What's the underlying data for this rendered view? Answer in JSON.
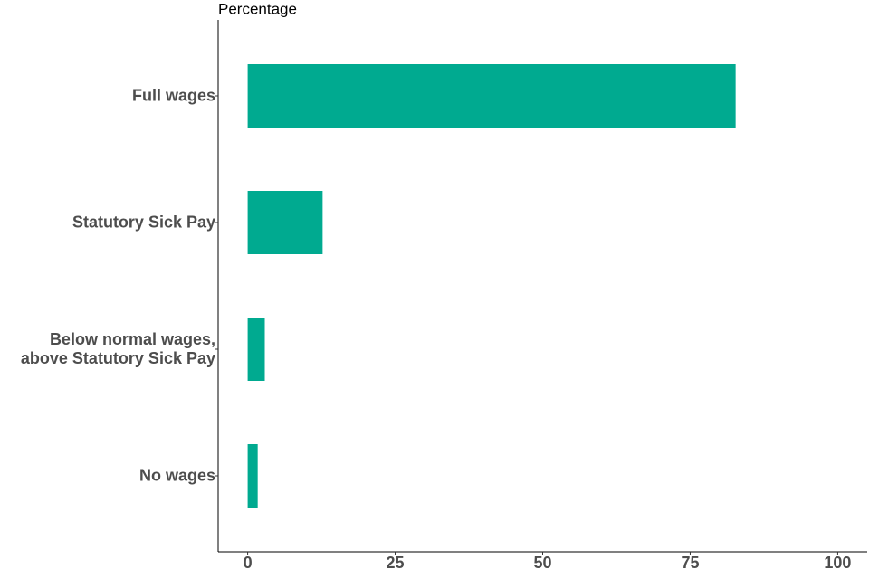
{
  "chart_data": {
    "type": "bar",
    "orientation": "horizontal",
    "title": "Percentage",
    "categories": [
      "Full wages",
      "Statutory Sick Pay",
      "Below normal wages,\nabove Statutory Sick Pay",
      "No wages"
    ],
    "values": [
      82.7,
      12.7,
      2.9,
      1.7
    ],
    "color": "#00aa90",
    "xlim": [
      -5,
      105
    ],
    "xticks": [
      0,
      25,
      50,
      75,
      100
    ],
    "grid": false
  }
}
